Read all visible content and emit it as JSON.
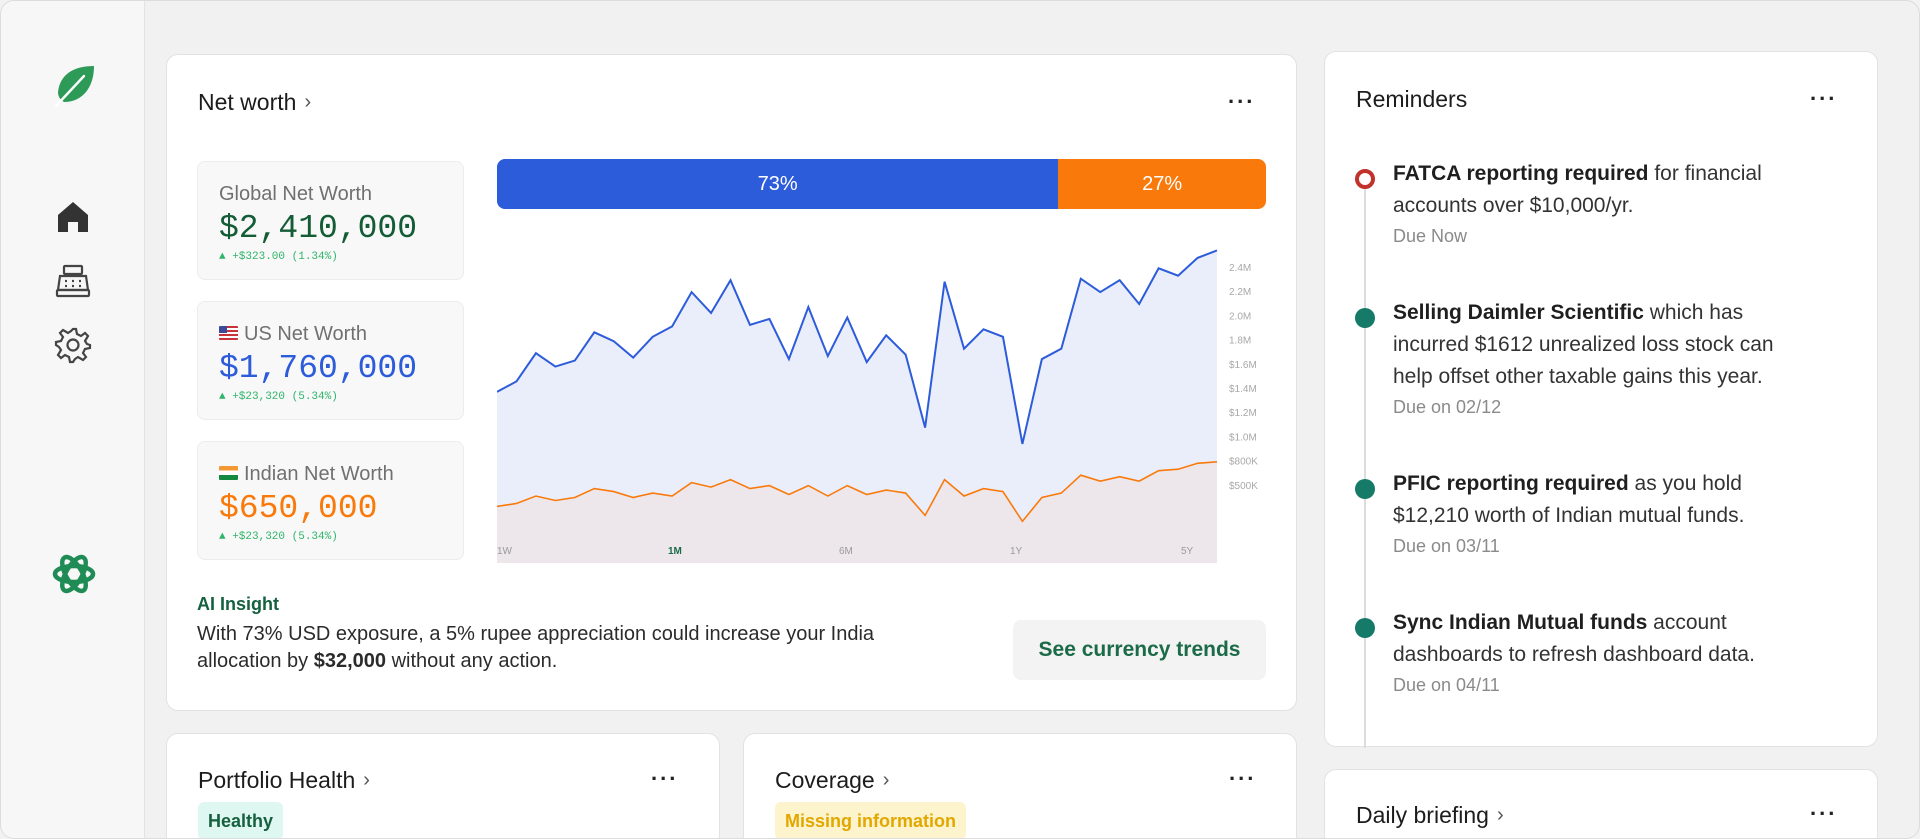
{
  "sidebar": {
    "logo_icon": "leaf-icon",
    "nav": [
      {
        "icon": "home-icon"
      },
      {
        "icon": "cash-register-icon"
      },
      {
        "icon": "gear-icon"
      }
    ],
    "assistant_icon": "knot-icon"
  },
  "net_worth": {
    "title": "Net worth",
    "global": {
      "label": "Global Net Worth",
      "value": "$2,410,000",
      "delta": "+$323.00 (1.34%)"
    },
    "us": {
      "label": "US Net Worth",
      "value": "$1,760,000",
      "delta": "+$23,320 (5.34%)"
    },
    "india": {
      "label": "Indian Net Worth",
      "value": "$650,000",
      "delta": "+$23,320 (5.34%)"
    },
    "split": [
      {
        "label": "73%",
        "value": 73,
        "color": "#2d5cdb"
      },
      {
        "label": "27%",
        "value": 27,
        "color": "#f97a0b"
      }
    ],
    "insight_title": "AI Insight",
    "insight_text_1": "With 73% USD exposure, a 5% rupee appreciation could increase your India allocation by ",
    "insight_amount": "$32,000",
    "insight_text_2": " without any action.",
    "cta": "See currency trends"
  },
  "chart_data": {
    "type": "area",
    "y_tick_labels": [
      "2.4M",
      "2.2M",
      "2.0M",
      "1.8M",
      "$1.6M",
      "$1.4M",
      "$1.2M",
      "$1.0M",
      "$800K",
      "$500K"
    ],
    "x_tick_labels": [
      "1W",
      "1M",
      "6M",
      "1Y",
      "5Y"
    ],
    "selected_range": "1M",
    "series": [
      {
        "color": "#2d5cdb",
        "values": [
          1.55,
          1.62,
          1.81,
          1.72,
          1.76,
          1.95,
          1.89,
          1.78,
          1.92,
          1.99,
          2.22,
          2.08,
          2.3,
          2.0,
          2.04,
          1.77,
          2.12,
          1.79,
          2.05,
          1.75,
          1.93,
          1.8,
          1.31,
          2.29,
          1.84,
          1.97,
          1.92,
          1.2,
          1.77,
          1.84,
          2.31,
          2.22,
          2.3,
          2.14,
          2.38,
          2.33,
          2.45,
          2.5
        ]
      },
      {
        "color": "#f97a0b",
        "values": [
          0.78,
          0.8,
          0.85,
          0.82,
          0.84,
          0.9,
          0.88,
          0.84,
          0.87,
          0.85,
          0.94,
          0.91,
          0.96,
          0.9,
          0.92,
          0.86,
          0.92,
          0.85,
          0.92,
          0.86,
          0.89,
          0.87,
          0.72,
          0.96,
          0.85,
          0.9,
          0.88,
          0.68,
          0.84,
          0.87,
          0.99,
          0.95,
          0.98,
          0.95,
          1.02,
          1.03,
          1.07,
          1.08
        ]
      }
    ]
  },
  "reminders": {
    "title": "Reminders",
    "items": [
      {
        "bold": "FATCA reporting required",
        "text": " for financial accounts over $10,000/yr.",
        "due": "Due Now",
        "status": "urgent"
      },
      {
        "bold": "Selling Daimler Scientific",
        "text": " which has incurred $1612 unrealized loss stock can help offset other taxable gains this year.",
        "due": "Due on 02/12",
        "status": "normal"
      },
      {
        "bold": "PFIC reporting required",
        "text": " as you hold $12,210 worth of Indian mutual funds.",
        "due": "Due on 03/11",
        "status": "normal"
      },
      {
        "bold": "Sync Indian Mutual funds",
        "text": " account dashboards to refresh dashboard data.",
        "due": "Due on 04/11",
        "status": "normal"
      }
    ]
  },
  "portfolio_health": {
    "title": "Portfolio Health",
    "badge": "Healthy"
  },
  "coverage": {
    "title": "Coverage",
    "badge": "Missing information"
  },
  "daily_briefing": {
    "title": "Daily briefing"
  },
  "menu_label": "..."
}
